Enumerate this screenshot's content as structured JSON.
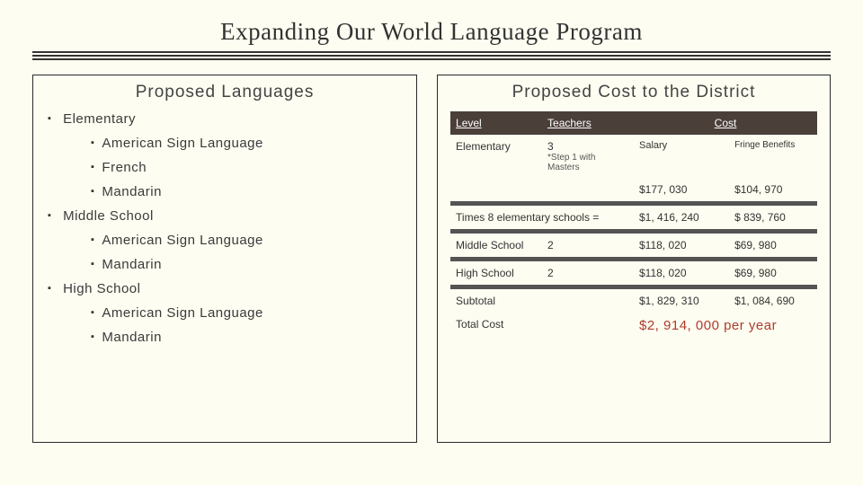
{
  "title": "Expanding Our World Language Program",
  "left": {
    "heading": "Proposed Languages",
    "groups": [
      {
        "name": "Elementary",
        "items": [
          "American Sign Language",
          "French",
          "Mandarin"
        ]
      },
      {
        "name": "Middle School",
        "items": [
          "American Sign Language",
          "Mandarin"
        ]
      },
      {
        "name": "High School",
        "items": [
          "American Sign Language",
          "Mandarin"
        ]
      }
    ]
  },
  "right": {
    "heading": "Proposed Cost to the District",
    "headers": {
      "level": "Level",
      "teachers": "Teachers",
      "cost": "Cost"
    },
    "row_elem": {
      "level": "Elementary",
      "teachers": "3",
      "teachers_note": "*Step 1 with Masters",
      "salary_label": "Salary",
      "fringe_label": "Fringe Benefits",
      "salary": "$177, 030",
      "fringe": "$104, 970"
    },
    "row_times": {
      "label": "Times 8 elementary schools =",
      "salary": "$1, 416, 240",
      "fringe": "$ 839, 760"
    },
    "row_ms": {
      "level": "Middle School",
      "teachers": "2",
      "salary": "$118, 020",
      "fringe": "$69, 980"
    },
    "row_hs": {
      "level": "High School",
      "teachers": "2",
      "salary": "$118, 020",
      "fringe": "$69, 980"
    },
    "row_sub": {
      "label": "Subtotal",
      "salary": "$1, 829, 310",
      "fringe": "$1, 084, 690"
    },
    "row_total": {
      "label": "Total Cost",
      "value": "$2, 914, 000 per year"
    }
  },
  "colors": {
    "background": "#fdfdf1",
    "text": "#3a3a3a",
    "table_header_bg": "#4b3f3a",
    "table_header_fg": "#ffffff",
    "separator": "#545454",
    "total_cost": "#b03a2e"
  }
}
